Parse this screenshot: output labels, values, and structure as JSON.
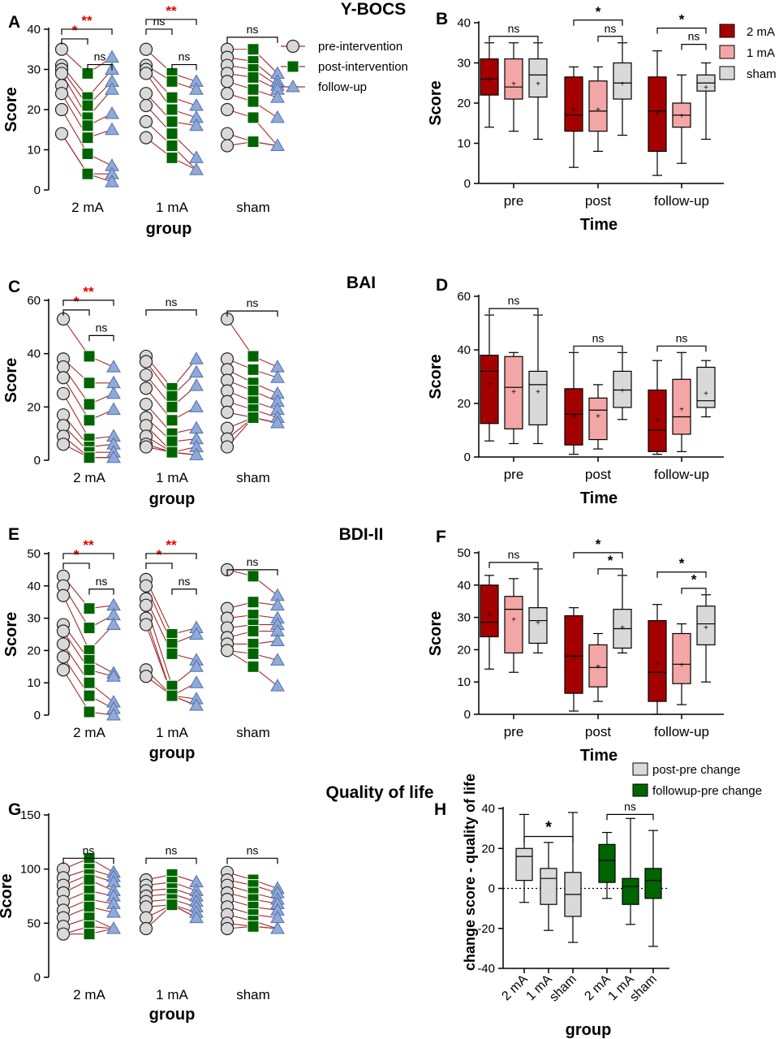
{
  "colors": {
    "pre": "#d9d9d9",
    "post": "#006400",
    "follow": "#8eaadb",
    "line": "#a52a2a",
    "box2mA": "#a50000",
    "box1mA": "#f4a6a6",
    "boxSham": "#d9d9d9",
    "sig": "#e00000",
    "axis": "#000000"
  },
  "chart_data": [
    {
      "id": "A",
      "type": "scatter",
      "panel_label": "A",
      "title": "Y-BOCS",
      "xlabel": "group",
      "ylabel": "Score",
      "ylim": [
        0,
        40
      ],
      "yticks": [
        0,
        10,
        20,
        30,
        40
      ],
      "groups": [
        "2 mA",
        "1 mA",
        "sham"
      ],
      "legend": [
        "pre-intervention",
        "post-intervention",
        "follow-up"
      ],
      "pre": [
        [
          35,
          31,
          30,
          29,
          26,
          24,
          20,
          14
        ],
        [
          35,
          31,
          30,
          29,
          24,
          21,
          17,
          13
        ],
        [
          35,
          33,
          31,
          29,
          27,
          24,
          20,
          14,
          11
        ]
      ],
      "post": [
        [
          29,
          23,
          21,
          18,
          16,
          13,
          9,
          4
        ],
        [
          29,
          27,
          23,
          20,
          17,
          14,
          11,
          8
        ],
        [
          35,
          32,
          30,
          28,
          25,
          22,
          18,
          12
        ]
      ],
      "follow": [
        [
          33,
          30,
          27,
          25,
          19,
          15,
          6,
          4,
          2
        ],
        [
          27,
          25,
          21,
          18,
          16,
          8,
          5
        ],
        [
          29,
          27,
          26,
          25,
          23,
          18,
          11
        ]
      ],
      "sig": [
        {
          "g": 0,
          "from": "pre",
          "to": "post",
          "label": "*",
          "level": 0,
          "red": true
        },
        {
          "g": 0,
          "from": "pre",
          "to": "follow",
          "label": "**",
          "level": 1,
          "red": true
        },
        {
          "g": 0,
          "from": "post",
          "to": "follow",
          "label": "ns",
          "level": 0,
          "red": false
        },
        {
          "g": 1,
          "from": "pre",
          "to": "post",
          "label": "ns",
          "level": 1,
          "red": false
        },
        {
          "g": 1,
          "from": "pre",
          "to": "follow",
          "label": "**",
          "level": 2,
          "red": true
        },
        {
          "g": 1,
          "from": "post",
          "to": "follow",
          "label": "ns",
          "level": 0,
          "red": false
        },
        {
          "g": 2,
          "from": "pre",
          "to": "follow",
          "label": "ns",
          "level": 1,
          "red": false
        }
      ]
    },
    {
      "id": "B",
      "type": "box",
      "panel_label": "B",
      "xlabel": "Time",
      "ylabel": "Score",
      "ylim": [
        0,
        40
      ],
      "yticks": [
        0,
        10,
        20,
        30,
        40
      ],
      "times": [
        "pre",
        "post",
        "follow-up"
      ],
      "series": [
        "2 mA",
        "1 mA",
        "sham"
      ],
      "boxes": [
        [
          [
            14,
            22,
            26,
            31,
            35,
            26
          ],
          [
            13,
            21,
            24,
            31,
            35,
            25
          ],
          [
            11,
            21.5,
            27,
            31,
            35,
            25
          ]
        ],
        [
          [
            4,
            13,
            17,
            26.5,
            29,
            18.5
          ],
          [
            8,
            13,
            18,
            25.5,
            29,
            18.5
          ],
          [
            12,
            21,
            25,
            30,
            35,
            25
          ]
        ],
        [
          [
            2,
            8,
            18,
            26.5,
            33,
            17.5
          ],
          [
            5,
            14,
            17,
            20,
            27,
            17
          ],
          [
            11,
            23,
            25,
            27,
            30,
            24
          ]
        ]
      ],
      "sig": [
        {
          "t": 0,
          "a": 0,
          "b": 2,
          "label": "ns",
          "level": 0
        },
        {
          "t": 1,
          "a": 0,
          "b": 2,
          "label": "*",
          "level": 1
        },
        {
          "t": 1,
          "a": 1,
          "b": 2,
          "label": "ns",
          "level": 0
        },
        {
          "t": 2,
          "a": 0,
          "b": 2,
          "label": "*",
          "level": 1
        },
        {
          "t": 2,
          "a": 1,
          "b": 2,
          "label": "ns",
          "level": 0
        }
      ],
      "legend": true
    },
    {
      "id": "C",
      "type": "scatter",
      "panel_label": "C",
      "title": "BAI",
      "xlabel": "group",
      "ylabel": "Score",
      "ylim": [
        0,
        60
      ],
      "yticks": [
        0,
        20,
        40,
        60
      ],
      "groups": [
        "2 mA",
        "1 mA",
        "sham"
      ],
      "pre": [
        [
          53,
          38,
          35,
          31,
          25,
          17,
          13,
          9,
          6
        ],
        [
          39,
          37,
          32,
          27,
          21,
          16,
          13,
          9,
          6,
          5
        ],
        [
          53,
          38,
          34,
          30,
          26,
          22,
          18,
          12,
          8,
          5
        ]
      ],
      "post": [
        [
          39,
          29,
          21,
          15,
          8,
          5,
          3,
          1
        ],
        [
          27,
          24,
          20,
          15,
          10,
          7,
          3
        ],
        [
          39,
          34,
          29,
          26,
          22,
          19,
          16
        ]
      ],
      "follow": [
        [
          35,
          29,
          25,
          19,
          9,
          6,
          3,
          1
        ],
        [
          38,
          33,
          28,
          20,
          12,
          8,
          5,
          2
        ],
        [
          35,
          31,
          25,
          22,
          19,
          16,
          14
        ]
      ],
      "sig": [
        {
          "g": 0,
          "from": "pre",
          "to": "post",
          "label": "*",
          "level": 0,
          "red": true
        },
        {
          "g": 0,
          "from": "pre",
          "to": "follow",
          "label": "**",
          "level": 1,
          "red": true
        },
        {
          "g": 0,
          "from": "post",
          "to": "follow",
          "label": "ns",
          "level": 0,
          "red": false
        },
        {
          "g": 1,
          "from": "pre",
          "to": "follow",
          "label": "ns",
          "level": 0,
          "red": false
        },
        {
          "g": 2,
          "from": "pre",
          "to": "follow",
          "label": "ns",
          "level": 1,
          "red": false
        }
      ]
    },
    {
      "id": "D",
      "type": "box",
      "panel_label": "D",
      "xlabel": "Time",
      "ylabel": "Score",
      "ylim": [
        0,
        60
      ],
      "yticks": [
        0,
        20,
        40,
        60
      ],
      "times": [
        "pre",
        "post",
        "follow-up"
      ],
      "series": [
        "2 mA",
        "1 mA",
        "sham"
      ],
      "boxes": [
        [
          [
            6,
            12.5,
            32,
            38,
            53,
            27.5
          ],
          [
            5,
            10.5,
            26,
            37.5,
            39,
            24.5
          ],
          [
            5,
            12,
            27,
            32,
            53,
            24.5
          ]
        ],
        [
          [
            1,
            4.5,
            16,
            25.5,
            39,
            15.5
          ],
          [
            3,
            6.5,
            17.5,
            22,
            27,
            15.5
          ],
          [
            14,
            18.5,
            25,
            32,
            39,
            25
          ]
        ],
        [
          [
            1,
            2,
            10,
            25,
            36,
            14
          ],
          [
            2,
            8.5,
            15,
            29,
            39,
            18
          ],
          [
            15,
            18.5,
            21,
            33.5,
            36,
            24
          ]
        ]
      ],
      "sig": [
        {
          "t": 0,
          "a": 0,
          "b": 2,
          "label": "ns",
          "level": 0
        },
        {
          "t": 1,
          "a": 0,
          "b": 2,
          "label": "ns",
          "level": 0
        },
        {
          "t": 2,
          "a": 0,
          "b": 2,
          "label": "ns",
          "level": 0
        }
      ],
      "legend": false
    },
    {
      "id": "E",
      "type": "scatter",
      "panel_label": "E",
      "title": "BDI-II",
      "xlabel": "group",
      "ylabel": "Score",
      "ylim": [
        0,
        50
      ],
      "yticks": [
        0,
        10,
        20,
        30,
        40,
        50
      ],
      "groups": [
        "2 mA",
        "1 mA",
        "sham"
      ],
      "pre": [
        [
          43,
          40,
          37,
          28,
          26,
          22,
          18,
          14
        ],
        [
          42,
          40,
          36,
          34,
          30,
          28,
          14,
          12
        ],
        [
          45,
          33,
          30,
          27,
          24,
          22,
          20
        ]
      ],
      "post": [
        [
          33,
          27,
          20,
          17,
          14,
          10,
          6,
          1
        ],
        [
          25,
          22,
          19,
          9,
          6
        ],
        [
          43,
          35,
          31,
          28,
          26,
          22,
          19,
          15
        ]
      ],
      "follow": [
        [
          34,
          31,
          28,
          13,
          12,
          4,
          2,
          0
        ],
        [
          27,
          25,
          17,
          15,
          10,
          5,
          3
        ],
        [
          37,
          34,
          30,
          28,
          26,
          23,
          17,
          9
        ]
      ],
      "sig": [
        {
          "g": 0,
          "from": "pre",
          "to": "post",
          "label": "*",
          "level": 0,
          "red": true
        },
        {
          "g": 0,
          "from": "pre",
          "to": "follow",
          "label": "**",
          "level": 1,
          "red": true
        },
        {
          "g": 0,
          "from": "post",
          "to": "follow",
          "label": "ns",
          "level": 0,
          "red": false
        },
        {
          "g": 1,
          "from": "pre",
          "to": "post",
          "label": "*",
          "level": 0,
          "red": true
        },
        {
          "g": 1,
          "from": "pre",
          "to": "follow",
          "label": "**",
          "level": 1,
          "red": true
        },
        {
          "g": 1,
          "from": "post",
          "to": "follow",
          "label": "ns",
          "level": 0,
          "red": false
        },
        {
          "g": 2,
          "from": "pre",
          "to": "follow",
          "label": "ns",
          "level": 1,
          "red": false
        }
      ]
    },
    {
      "id": "F",
      "type": "box",
      "panel_label": "F",
      "xlabel": "Time",
      "ylabel": "Score",
      "ylim": [
        0,
        50
      ],
      "yticks": [
        0,
        10,
        20,
        30,
        40,
        50
      ],
      "times": [
        "pre",
        "post",
        "follow-up"
      ],
      "series": [
        "2 mA",
        "1 mA",
        "sham"
      ],
      "boxes": [
        [
          [
            14,
            24,
            28.5,
            40,
            43,
            31
          ],
          [
            13,
            19,
            32.5,
            36.5,
            42,
            29.5
          ],
          [
            19,
            22,
            29,
            33,
            45,
            28.5
          ]
        ],
        [
          [
            1,
            6.5,
            18,
            30.5,
            33,
            18
          ],
          [
            4,
            8.5,
            14.5,
            21.5,
            25,
            15
          ],
          [
            19,
            20.5,
            26.5,
            32.5,
            43,
            27
          ]
        ],
        [
          [
            0,
            4,
            13,
            29,
            34,
            16
          ],
          [
            3,
            9.5,
            15.5,
            25,
            28,
            15.5
          ],
          [
            10,
            21.5,
            28,
            33.5,
            37,
            27
          ]
        ]
      ],
      "sig": [
        {
          "t": 0,
          "a": 0,
          "b": 2,
          "label": "ns",
          "level": 0
        },
        {
          "t": 1,
          "a": 0,
          "b": 2,
          "label": "*",
          "level": 1
        },
        {
          "t": 1,
          "a": 1,
          "b": 2,
          "label": "*",
          "level": 0
        },
        {
          "t": 2,
          "a": 0,
          "b": 2,
          "label": "*",
          "level": 1
        },
        {
          "t": 2,
          "a": 1,
          "b": 2,
          "label": "*",
          "level": 0
        }
      ],
      "legend": false
    },
    {
      "id": "G",
      "type": "scatter",
      "panel_label": "G",
      "title": "Quality of life",
      "xlabel": "group",
      "ylabel": "Score",
      "ylim": [
        0,
        150
      ],
      "yticks": [
        0,
        50,
        100,
        150
      ],
      "groups": [
        "2 mA",
        "1 mA",
        "sham"
      ],
      "pre": [
        [
          100,
          92,
          85,
          78,
          70,
          62,
          55,
          47,
          40
        ],
        [
          90,
          85,
          80,
          75,
          70,
          65,
          55,
          45
        ],
        [
          97,
          90,
          85,
          78,
          72,
          65,
          58,
          50,
          45
        ]
      ],
      "post": [
        [
          110,
          100,
          95,
          90,
          80,
          72,
          65,
          55,
          47,
          40
        ],
        [
          95,
          88,
          82,
          77,
          72,
          67
        ],
        [
          90,
          85,
          78,
          72,
          65,
          58,
          52,
          47
        ]
      ],
      "follow": [
        [
          97,
          93,
          88,
          80,
          75,
          68,
          60,
          45
        ],
        [
          88,
          80,
          75,
          70,
          65,
          60,
          55
        ],
        [
          82,
          78,
          72,
          68,
          62,
          55,
          45
        ]
      ],
      "sig": [
        {
          "g": 0,
          "from": "pre",
          "to": "follow",
          "label": "ns",
          "level": 0,
          "red": false
        },
        {
          "g": 1,
          "from": "pre",
          "to": "follow",
          "label": "ns",
          "level": 0,
          "red": false
        },
        {
          "g": 2,
          "from": "pre",
          "to": "follow",
          "label": "ns",
          "level": 0,
          "red": false
        }
      ]
    },
    {
      "id": "H",
      "type": "box",
      "panel_label": "H",
      "xlabel": "group",
      "ylabel": "change score - quality of life",
      "ylim": [
        -40,
        40
      ],
      "yticks": [
        -40,
        -20,
        0,
        20,
        40
      ],
      "categories": [
        "2 mA",
        "1 mA",
        "sham",
        "2 mA",
        "1 mA",
        "sham"
      ],
      "legend": [
        "post-pre change",
        "followup-pre change"
      ],
      "boxes": [
        [
          -7,
          4,
          16,
          20,
          37
        ],
        [
          -21,
          -8,
          5,
          10,
          23
        ],
        [
          -27,
          -14,
          -3,
          8,
          38
        ],
        [
          -5,
          3,
          14,
          22,
          28
        ],
        [
          -18,
          -8,
          1,
          5,
          35
        ],
        [
          -29,
          -5,
          4,
          10,
          29
        ]
      ],
      "sig": [
        {
          "a": 0,
          "b": 2,
          "label": "*"
        },
        {
          "a": 3,
          "b": 5,
          "label": "ns"
        }
      ]
    }
  ]
}
